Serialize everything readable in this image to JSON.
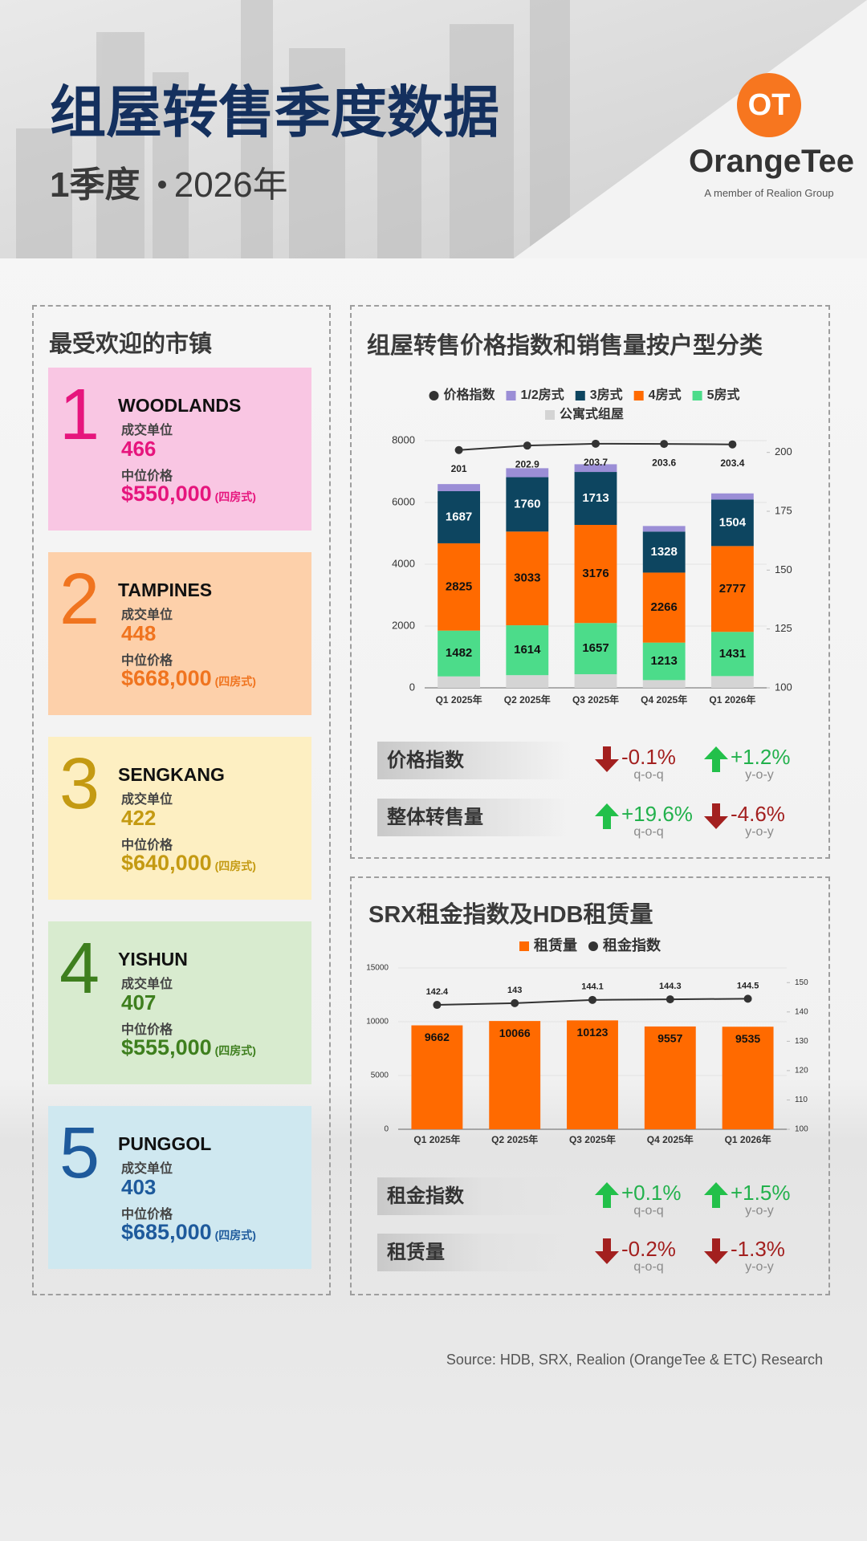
{
  "header": {
    "title": "组屋转售季度数据",
    "quarter": "1季度",
    "year": "2026年",
    "logo_mark": "OT",
    "brand": "OrangeTee",
    "tagline": "A member of Realion Group"
  },
  "towns": {
    "title": "最受欢迎的市镇",
    "items": [
      {
        "rank": "1",
        "name": "WOODLANDS",
        "units_label": "成交单位",
        "units": 466,
        "price_label": "中位价格",
        "price": "$550,000",
        "flat_type": "(四房式)",
        "color": "#e6157d",
        "background": "#f9c6e3"
      },
      {
        "rank": "2",
        "name": "TAMPINES",
        "units_label": "成交单位",
        "units": 448,
        "price_label": "中位价格",
        "price": "$668,000",
        "flat_type": "(四房式)",
        "color": "#f0741f",
        "background": "#fdd0aa"
      },
      {
        "rank": "3",
        "name": "SENGKANG",
        "units_label": "成交单位",
        "units": 422,
        "price_label": "中位价格",
        "price": "$640,000",
        "flat_type": "(四房式)",
        "color": "#c49a12",
        "background": "#fdefc2"
      },
      {
        "rank": "4",
        "name": "YISHUN",
        "units_label": "成交单位",
        "units": 407,
        "price_label": "中位价格",
        "price": "$555,000",
        "flat_type": "(四房式)",
        "color": "#3e7f1e",
        "background": "#d8ebcf"
      },
      {
        "rank": "5",
        "name": "PUNGGOL",
        "units_label": "成交单位",
        "units": 403,
        "price_label": "中位价格",
        "price": "$685,000",
        "flat_type": "(四房式)",
        "color": "#1e5a9c",
        "background": "#cfe8f0"
      }
    ]
  },
  "chart_data": [
    {
      "type": "bar",
      "stacked": true,
      "title": "组屋转售价格指数和销售量按户型分类",
      "categories": [
        "Q1 2025年",
        "Q2 2025年",
        "Q3 2025年",
        "Q4 2025年",
        "Q1 2026年"
      ],
      "series": [
        {
          "name": "价格指数",
          "type": "line",
          "axis": "y2",
          "color": "#333333",
          "values": [
            201,
            202.9,
            203.7,
            203.6,
            203.4
          ],
          "data_labels": true,
          "label_position": "below",
          "label_color": "#222222"
        },
        {
          "name": "1/2房式",
          "color": "#9b8ed6",
          "values": [
            230,
            290,
            250,
            180,
            200
          ]
        },
        {
          "name": "3房式",
          "color": "#0d4560",
          "values": [
            1687,
            1760,
            1713,
            1328,
            1504
          ],
          "data_labels": true,
          "label_color": "#ffffff"
        },
        {
          "name": "4房式",
          "color": "#ff6a00",
          "values": [
            2825,
            3033,
            3176,
            2266,
            2777
          ],
          "data_labels": true,
          "label_color": "#111111"
        },
        {
          "name": "5房式",
          "color": "#4cdc8a",
          "values": [
            1482,
            1614,
            1657,
            1213,
            1431
          ],
          "data_labels": true,
          "label_color": "#111111"
        },
        {
          "name": "公寓式组屋",
          "color": "#d4d4d4",
          "values": [
            370,
            410,
            440,
            250,
            380
          ]
        }
      ],
      "stack_order": [
        "公寓式组屋",
        "5房式",
        "4房式",
        "3房式",
        "1/2房式"
      ],
      "ylim": [
        0,
        8000
      ],
      "yticks": [
        0,
        2000,
        4000,
        6000,
        8000
      ],
      "y2lim": [
        100,
        205
      ],
      "y2ticks": [
        100,
        125,
        150,
        175,
        200
      ],
      "grid": true
    },
    {
      "type": "bar",
      "title": "SRX租金指数及HDB租赁量",
      "categories": [
        "Q1 2025年",
        "Q2 2025年",
        "Q3 2025年",
        "Q4 2025年",
        "Q1 2026年"
      ],
      "series": [
        {
          "name": "租赁量",
          "color": "#ff6a00",
          "values": [
            9662,
            10066,
            10123,
            9557,
            9535
          ],
          "data_labels": true,
          "label_color": "#111111"
        },
        {
          "name": "租金指数",
          "type": "line",
          "axis": "y2",
          "color": "#333333",
          "values": [
            142.4,
            143,
            144.1,
            144.3,
            144.5
          ],
          "data_labels": true,
          "label_position": "above",
          "label_color": "#222222"
        }
      ],
      "ylim": [
        0,
        15000
      ],
      "yticks": [
        0,
        5000,
        10000,
        15000
      ],
      "y2lim": [
        100,
        155
      ],
      "y2ticks": [
        100,
        110,
        120,
        130,
        140,
        150
      ],
      "grid": true
    }
  ],
  "resale_stats": [
    {
      "label": "价格指数",
      "qoq": "-0.1%",
      "yoy": "+1.2%"
    },
    {
      "label": "整体转售量",
      "qoq": "+19.6%",
      "yoy": "-4.6%"
    }
  ],
  "rental_stats": [
    {
      "label": "租金指数",
      "qoq": "+0.1%",
      "yoy": "+1.5%"
    },
    {
      "label": "租赁量",
      "qoq": "-0.2%",
      "yoy": "-1.3%"
    }
  ],
  "period_labels": {
    "qoq": "q-o-q",
    "yoy": "y-o-y"
  },
  "source": "Source: HDB, SRX, Realion (OrangeTee & ETC) Research"
}
